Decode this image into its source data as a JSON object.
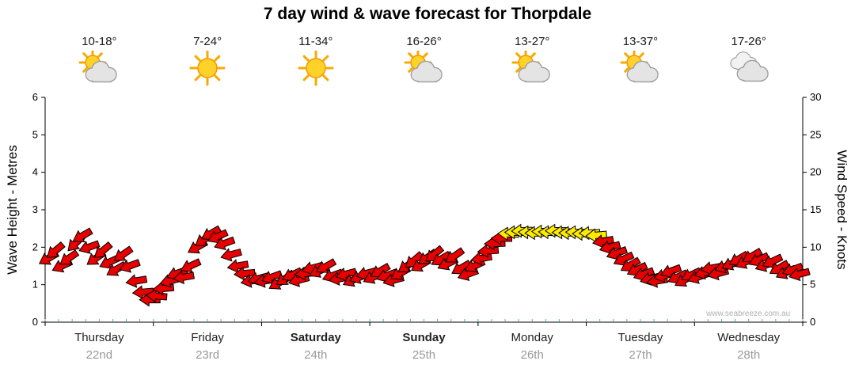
{
  "title": "7 day wind & wave forecast for Thorpdale",
  "watermark": "www.seabreeze.com.au",
  "axes": {
    "left_title": "Wave Height - Metres",
    "right_title": "Wind Speed - Knots",
    "left_ticks": [
      0,
      1,
      2,
      3,
      4,
      5,
      6
    ],
    "right_ticks": [
      0,
      5,
      10,
      15,
      20,
      25,
      30
    ]
  },
  "days": [
    {
      "name": "Thursday",
      "date": "22nd",
      "temp": "10-18°",
      "icon": "sun-cloud",
      "bold": false
    },
    {
      "name": "Friday",
      "date": "23rd",
      "temp": "7-24°",
      "icon": "sun",
      "bold": false
    },
    {
      "name": "Saturday",
      "date": "24th",
      "temp": "11-34°",
      "icon": "sun",
      "bold": true
    },
    {
      "name": "Sunday",
      "date": "25th",
      "temp": "16-26°",
      "icon": "sun-cloud",
      "bold": true
    },
    {
      "name": "Monday",
      "date": "26th",
      "temp": "13-27°",
      "icon": "sun-cloud",
      "bold": false
    },
    {
      "name": "Tuesday",
      "date": "27th",
      "temp": "13-37°",
      "icon": "sun-cloud",
      "bold": false
    },
    {
      "name": "Wednesday",
      "date": "28th",
      "temp": "17-26°",
      "icon": "cloud",
      "bold": false
    }
  ],
  "chart_data": {
    "type": "wind-arrow-series",
    "title": "7 day wind & wave forecast for Thorpdale",
    "categories": [
      "Thursday 22nd",
      "Friday 23rd",
      "Saturday 24th",
      "Sunday 25th",
      "Monday 26th",
      "Tuesday 27th",
      "Wednesday 28th"
    ],
    "x_unit": "hours",
    "x_range": [
      0,
      168
    ],
    "left_axis": {
      "label": "Wave Height - Metres",
      "range": [
        0,
        6
      ]
    },
    "right_axis": {
      "label": "Wind Speed - Knots",
      "range": [
        0,
        30
      ]
    },
    "colors": {
      "red": "#E60000",
      "yellow": "#FFEB00",
      "tick_minor": "#2FBBD6"
    },
    "point_format": [
      "hour",
      "knots",
      "direction_deg",
      "is_yellow"
    ],
    "points": [
      [
        0,
        8.5,
        150,
        0
      ],
      [
        1.5,
        9.5,
        140,
        0
      ],
      [
        3,
        7.5,
        155,
        0
      ],
      [
        4.5,
        8.5,
        145,
        0
      ],
      [
        6,
        10.5,
        135,
        0
      ],
      [
        7.5,
        11.5,
        150,
        0
      ],
      [
        9,
        10,
        160,
        0
      ],
      [
        10.5,
        8.5,
        145,
        0
      ],
      [
        12,
        9.5,
        140,
        0
      ],
      [
        13.5,
        8,
        155,
        0
      ],
      [
        15,
        7,
        150,
        0
      ],
      [
        16.5,
        9,
        145,
        0
      ],
      [
        18,
        7.5,
        160,
        0
      ],
      [
        19.5,
        5.5,
        170,
        0
      ],
      [
        21,
        4,
        175,
        0
      ],
      [
        22.5,
        3,
        180,
        0
      ],
      [
        24,
        3.5,
        185,
        0
      ],
      [
        25.5,
        4.5,
        175,
        0
      ],
      [
        27,
        5.5,
        165,
        0
      ],
      [
        28.5,
        6.5,
        160,
        0
      ],
      [
        30,
        6,
        170,
        0
      ],
      [
        31.5,
        7.5,
        155,
        0
      ],
      [
        33,
        10,
        150,
        0
      ],
      [
        34.5,
        11,
        145,
        0
      ],
      [
        36,
        11.8,
        150,
        0
      ],
      [
        37.5,
        11.4,
        155,
        0
      ],
      [
        39,
        10.5,
        160,
        0
      ],
      [
        40.5,
        9,
        165,
        0
      ],
      [
        42,
        7.5,
        170,
        0
      ],
      [
        43.5,
        6.5,
        175,
        0
      ],
      [
        45,
        5.5,
        170,
        0
      ],
      [
        46.5,
        5.8,
        165,
        0
      ],
      [
        48,
        5.5,
        170,
        0
      ],
      [
        49.5,
        6,
        160,
        0
      ],
      [
        51,
        5.2,
        150,
        0
      ],
      [
        52.5,
        5.8,
        145,
        0
      ],
      [
        54,
        6.3,
        155,
        0
      ],
      [
        55.5,
        5.6,
        165,
        0
      ],
      [
        57,
        6.5,
        175,
        0
      ],
      [
        58.5,
        7.2,
        165,
        0
      ],
      [
        60,
        6.8,
        155,
        0
      ],
      [
        61.5,
        7.4,
        150,
        0
      ],
      [
        63,
        6.2,
        160,
        0
      ],
      [
        64.5,
        5.8,
        170,
        0
      ],
      [
        66,
        6.4,
        165,
        0
      ],
      [
        67.5,
        5.6,
        155,
        0
      ],
      [
        69,
        6,
        160,
        0
      ],
      [
        70.5,
        6.5,
        165,
        0
      ],
      [
        72,
        6,
        155,
        0
      ],
      [
        73.5,
        6.8,
        150,
        0
      ],
      [
        75,
        6.2,
        160,
        0
      ],
      [
        76.5,
        5.6,
        165,
        0
      ],
      [
        78,
        6.5,
        150,
        0
      ],
      [
        79.5,
        7.5,
        145,
        0
      ],
      [
        81,
        8.2,
        140,
        0
      ],
      [
        82.5,
        7.6,
        150,
        0
      ],
      [
        84,
        8.6,
        145,
        0
      ],
      [
        85.5,
        9,
        140,
        0
      ],
      [
        87,
        8.4,
        150,
        0
      ],
      [
        88.5,
        7.8,
        155,
        0
      ],
      [
        90,
        8.8,
        145,
        0
      ],
      [
        91.5,
        7.2,
        150,
        0
      ],
      [
        93,
        6.4,
        160,
        0
      ],
      [
        94.5,
        7.5,
        155,
        0
      ],
      [
        96,
        8.5,
        170,
        0
      ],
      [
        97.5,
        9.5,
        175,
        0
      ],
      [
        99,
        10.5,
        178,
        0
      ],
      [
        100.5,
        11.2,
        180,
        0
      ],
      [
        102,
        11.8,
        182,
        1
      ],
      [
        103.5,
        12,
        180,
        1
      ],
      [
        105,
        12.2,
        178,
        1
      ],
      [
        106.5,
        12,
        181,
        1
      ],
      [
        108,
        11.9,
        179,
        1
      ],
      [
        109.5,
        12.1,
        180,
        1
      ],
      [
        111,
        12,
        182,
        1
      ],
      [
        112.5,
        12.2,
        180,
        1
      ],
      [
        114,
        12,
        178,
        1
      ],
      [
        115.5,
        11.9,
        180,
        1
      ],
      [
        117,
        12,
        181,
        1
      ],
      [
        118.5,
        11.8,
        180,
        1
      ],
      [
        120,
        11.9,
        178,
        1
      ],
      [
        121.5,
        11.6,
        175,
        1
      ],
      [
        123,
        10.8,
        170,
        0
      ],
      [
        124.5,
        10,
        165,
        0
      ],
      [
        126,
        9.2,
        160,
        0
      ],
      [
        127.5,
        8.4,
        155,
        0
      ],
      [
        129,
        7.6,
        150,
        0
      ],
      [
        130.5,
        7,
        155,
        0
      ],
      [
        132,
        6.4,
        160,
        0
      ],
      [
        133.5,
        5.8,
        165,
        0
      ],
      [
        135,
        5.5,
        170,
        0
      ],
      [
        136.5,
        6.2,
        165,
        0
      ],
      [
        138,
        6.8,
        160,
        0
      ],
      [
        139.5,
        6,
        155,
        0
      ],
      [
        141,
        5.6,
        150,
        0
      ],
      [
        142.5,
        6.3,
        155,
        0
      ],
      [
        144,
        6,
        160,
        0
      ],
      [
        145.5,
        6.6,
        165,
        0
      ],
      [
        147,
        7.2,
        170,
        0
      ],
      [
        148.5,
        6.5,
        165,
        0
      ],
      [
        150,
        7.4,
        160,
        0
      ],
      [
        151.5,
        7.8,
        155,
        0
      ],
      [
        153,
        8.4,
        150,
        0
      ],
      [
        154.5,
        8,
        155,
        0
      ],
      [
        156,
        8.8,
        150,
        0
      ],
      [
        157.5,
        8.3,
        155,
        0
      ],
      [
        159,
        7.6,
        160,
        0
      ],
      [
        160.5,
        8.1,
        155,
        0
      ],
      [
        162,
        7.2,
        150,
        0
      ],
      [
        163.5,
        6.6,
        155,
        0
      ],
      [
        165,
        7,
        160,
        0
      ],
      [
        166.5,
        6.4,
        165,
        0
      ]
    ]
  }
}
